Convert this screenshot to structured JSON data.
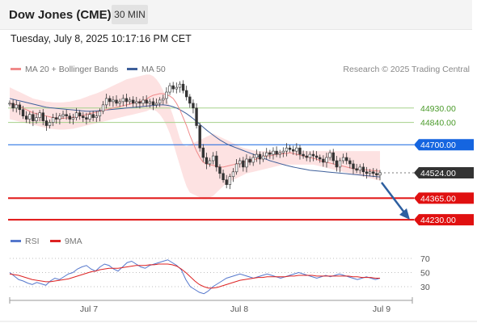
{
  "header": {
    "title": "Dow Jones (CME)",
    "timeframe": "30 MIN"
  },
  "timestamp": "Tuesday, July 8, 2025 10:17:16 PM CET",
  "legend": {
    "ma20": "MA 20 + Bollinger Bands",
    "ma50": "MA 50",
    "credit": "Research © 2025 Trading Central"
  },
  "rsi_legend": {
    "rsi": "RSI",
    "ma": "9MA"
  },
  "colors": {
    "ma20": "#f08a8a",
    "ma50": "#3e5f9a",
    "bollinger": "#fde2e2",
    "resistance": "#1565e0",
    "support": "#e01010",
    "last": "#333333",
    "green_line": "#a6d18a",
    "rsi": "#5577cc",
    "rsi_ma": "#dd2222",
    "up_candle": "#4caf50",
    "down_candle": "#e05050"
  },
  "chart_data": [
    {
      "type": "line",
      "subtype": "candlestick",
      "x_ticks": [
        "Jul 7",
        "Jul 8",
        "Jul 9"
      ],
      "ylim": [
        44150,
        45150
      ],
      "levels": [
        {
          "value": 44930.0,
          "label": "44930.00",
          "kind": "resistance-minor"
        },
        {
          "value": 44840.0,
          "label": "44840.00",
          "kind": "resistance-minor"
        },
        {
          "value": 44700.0,
          "label": "44700.00",
          "kind": "pivot"
        },
        {
          "value": 44524.0,
          "label": "44524.00",
          "kind": "last"
        },
        {
          "value": 44365.0,
          "label": "44365.00",
          "kind": "support"
        },
        {
          "value": 44230.0,
          "label": "44230.00",
          "kind": "support"
        }
      ],
      "close": [
        44960,
        44930,
        44950,
        44920,
        44880,
        44860,
        44890,
        44850,
        44870,
        44900,
        44850,
        44820,
        44840,
        44870,
        44860,
        44880,
        44890,
        44880,
        44860,
        44870,
        44900,
        44880,
        44870,
        44860,
        44890,
        44870,
        44880,
        44910,
        44950,
        44990,
        44970,
        44980,
        44960,
        44970,
        44990,
        44970,
        44980,
        44960,
        44970,
        44960,
        44980,
        44960,
        44970,
        44950,
        44960,
        44980,
        44990,
        45030,
        45070,
        45050,
        45060,
        45080,
        45040,
        45000,
        44960,
        44930,
        44820,
        44680,
        44620,
        44580,
        44600,
        44630,
        44560,
        44520,
        44480,
        44450,
        44500,
        44530,
        44580,
        44600,
        44560,
        44610,
        44590,
        44620,
        44640,
        44610,
        44630,
        44650,
        44640,
        44660,
        44640,
        44650,
        44660,
        44680,
        44670,
        44660,
        44680,
        44640,
        44630,
        44620,
        44640,
        44630,
        44620,
        44610,
        44590,
        44620,
        44650,
        44600,
        44560,
        44600,
        44620,
        44600,
        44580,
        44550,
        44540,
        44560,
        44530,
        44520,
        44530,
        44520,
        44510,
        44524
      ],
      "ma20": [
        44960,
        44955,
        44950,
        44940,
        44930,
        44920,
        44910,
        44900,
        44895,
        44890,
        44885,
        44880,
        44875,
        44870,
        44868,
        44866,
        44866,
        44868,
        44870,
        44872,
        44876,
        44880,
        44885,
        44890,
        44895,
        44900,
        44905,
        44910,
        44915,
        44920,
        44925,
        44930,
        44935,
        44940,
        44945,
        44950,
        44955,
        44960,
        44965,
        44970,
        44975,
        44985,
        45000,
        45010,
        45015,
        45020,
        45020,
        45015,
        45005,
        44990,
        44960,
        44920,
        44870,
        44820,
        44760,
        44710,
        44660,
        44620,
        44590,
        44580,
        44575,
        44570,
        44565,
        44560,
        44560,
        44565,
        44570,
        44575,
        44580,
        44585,
        44590,
        44595,
        44600,
        44605,
        44610,
        44620,
        44625,
        44630,
        44630,
        44635,
        44640,
        44640,
        44645,
        44645,
        44650,
        44645,
        44640,
        44635,
        44630,
        44625,
        44620,
        44615,
        44610,
        44600,
        44595,
        44590,
        44585,
        44580,
        44575,
        44570,
        44565,
        44560,
        44555,
        44550,
        44548,
        44546,
        44544,
        44542,
        44540,
        44538,
        44536,
        44534
      ],
      "ma50": [
        44990,
        44985,
        44980,
        44975,
        44970,
        44965,
        44960,
        44955,
        44950,
        44945,
        44940,
        44935,
        44932,
        44930,
        44928,
        44926,
        44924,
        44922,
        44920,
        44918,
        44916,
        44914,
        44912,
        44910,
        44910,
        44910,
        44912,
        44914,
        44916,
        44918,
        44920,
        44922,
        44924,
        44926,
        44928,
        44930,
        44932,
        44934,
        44936,
        44938,
        44940,
        44942,
        44944,
        44946,
        44948,
        44950,
        44950,
        44948,
        44944,
        44938,
        44930,
        44920,
        44908,
        44895,
        44880,
        44864,
        44846,
        44828,
        44810,
        44792,
        44776,
        44760,
        44745,
        44730,
        44718,
        44706,
        44696,
        44688,
        44680,
        44672,
        44664,
        44656,
        44648,
        44640,
        44632,
        44624,
        44616,
        44608,
        44600,
        44594,
        44588,
        44582,
        44576,
        44570,
        44565,
        44560,
        44556,
        44552,
        44548,
        44544,
        44540,
        44538,
        44536,
        44534,
        44532,
        44530,
        44528,
        44526,
        44524,
        44522,
        44520,
        44518,
        44516,
        44514,
        44512,
        44510,
        44508,
        44506,
        44504,
        44502,
        44500,
        44498
      ],
      "bollinger_upper": [
        45060,
        45050,
        45040,
        45030,
        45020,
        45010,
        45000,
        44990,
        44985,
        44980,
        44975,
        44970,
        44968,
        44966,
        44965,
        44965,
        44966,
        44968,
        44970,
        44975,
        44980,
        44985,
        44992,
        45000,
        45008,
        45015,
        45022,
        45030,
        45040,
        45050,
        45060,
        45070,
        45080,
        45090,
        45100,
        45110,
        45115,
        45120,
        45125,
        45130,
        45135,
        45140,
        45140,
        45130,
        45110,
        45080,
        45040,
        44990,
        44940,
        44880,
        44810,
        44740,
        44700,
        44690,
        44700,
        44710,
        44720,
        44730,
        44740,
        44750,
        44760,
        44770,
        44760,
        44750,
        44740,
        44730,
        44720,
        44710,
        44700,
        44690,
        44680,
        44675,
        44670,
        44665,
        44660,
        44660,
        44660,
        44660,
        44660,
        44660,
        44660,
        44660,
        44660,
        44660,
        44660,
        44660,
        44660,
        44660,
        44660,
        44660,
        44660,
        44660,
        44660,
        44660,
        44660,
        44660,
        44660,
        44660,
        44660,
        44660,
        44660,
        44660,
        44660,
        44660,
        44660,
        44660,
        44660,
        44660,
        44660,
        44660,
        44660,
        44660
      ],
      "bollinger_lower": [
        44860,
        44855,
        44850,
        44845,
        44840,
        44835,
        44830,
        44825,
        44820,
        44815,
        44810,
        44805,
        44800,
        44798,
        44796,
        44795,
        44795,
        44796,
        44798,
        44800,
        44805,
        44810,
        44815,
        44820,
        44825,
        44830,
        44835,
        44840,
        44845,
        44850,
        44855,
        44860,
        44865,
        44870,
        44875,
        44880,
        44885,
        44890,
        44895,
        44900,
        44905,
        44910,
        44920,
        44920,
        44910,
        44890,
        44860,
        44820,
        44770,
        44710,
        44640,
        44570,
        44500,
        44440,
        44400,
        44390,
        44380,
        44370,
        44360,
        44360,
        44370,
        44380,
        44400,
        44420,
        44440,
        44460,
        44470,
        44480,
        44490,
        44500,
        44510,
        44520,
        44525,
        44530,
        44535,
        44540,
        44545,
        44550,
        44555,
        44560,
        44565,
        44570,
        44575,
        44575,
        44575,
        44575,
        44575,
        44575,
        44575,
        44575,
        44575,
        44575,
        44570,
        44565,
        44560,
        44555,
        44550,
        44545,
        44540,
        44535,
        44530,
        44525,
        44520,
        44515,
        44510,
        44505,
        44500,
        44495,
        44490,
        44485,
        44480,
        44475
      ]
    },
    {
      "type": "line",
      "name": "RSI",
      "x_ticks": [
        "Jul 7",
        "Jul 8",
        "Jul 9"
      ],
      "y_ticks": [
        70,
        50,
        30
      ],
      "ylim": [
        10,
        90
      ],
      "series": [
        {
          "name": "RSI",
          "values": [
            50,
            45,
            40,
            38,
            35,
            33,
            36,
            34,
            32,
            38,
            42,
            40,
            44,
            48,
            50,
            55,
            58,
            60,
            55,
            52,
            58,
            62,
            60,
            55,
            52,
            58,
            64,
            66,
            62,
            58,
            56,
            60,
            62,
            64,
            66,
            68,
            64,
            60,
            54,
            40,
            30,
            26,
            22,
            20,
            24,
            30,
            34,
            38,
            42,
            44,
            46,
            48,
            46,
            44,
            42,
            44,
            46,
            48,
            46,
            44,
            42,
            44,
            46,
            48,
            50,
            48,
            46,
            44,
            42,
            44,
            46,
            44,
            46,
            48,
            46,
            44,
            42,
            40,
            42,
            44,
            42,
            40,
            42
          ]
        },
        {
          "name": "9MA",
          "values": [
            48,
            47,
            46,
            44,
            42,
            40,
            39,
            38,
            37,
            37,
            38,
            39,
            40,
            41,
            43,
            45,
            47,
            49,
            51,
            52,
            54,
            55,
            56,
            56,
            56,
            57,
            58,
            59,
            60,
            60,
            60,
            61,
            61,
            62,
            62,
            62,
            61,
            59,
            55,
            50,
            44,
            38,
            33,
            30,
            28,
            28,
            29,
            31,
            33,
            35,
            37,
            39,
            40,
            41,
            42,
            43,
            43,
            44,
            44,
            44,
            44,
            44,
            45,
            45,
            46,
            46,
            46,
            46,
            45,
            45,
            45,
            45,
            45,
            45,
            45,
            45,
            44,
            44,
            43,
            43,
            43,
            42,
            42
          ]
        }
      ]
    }
  ]
}
